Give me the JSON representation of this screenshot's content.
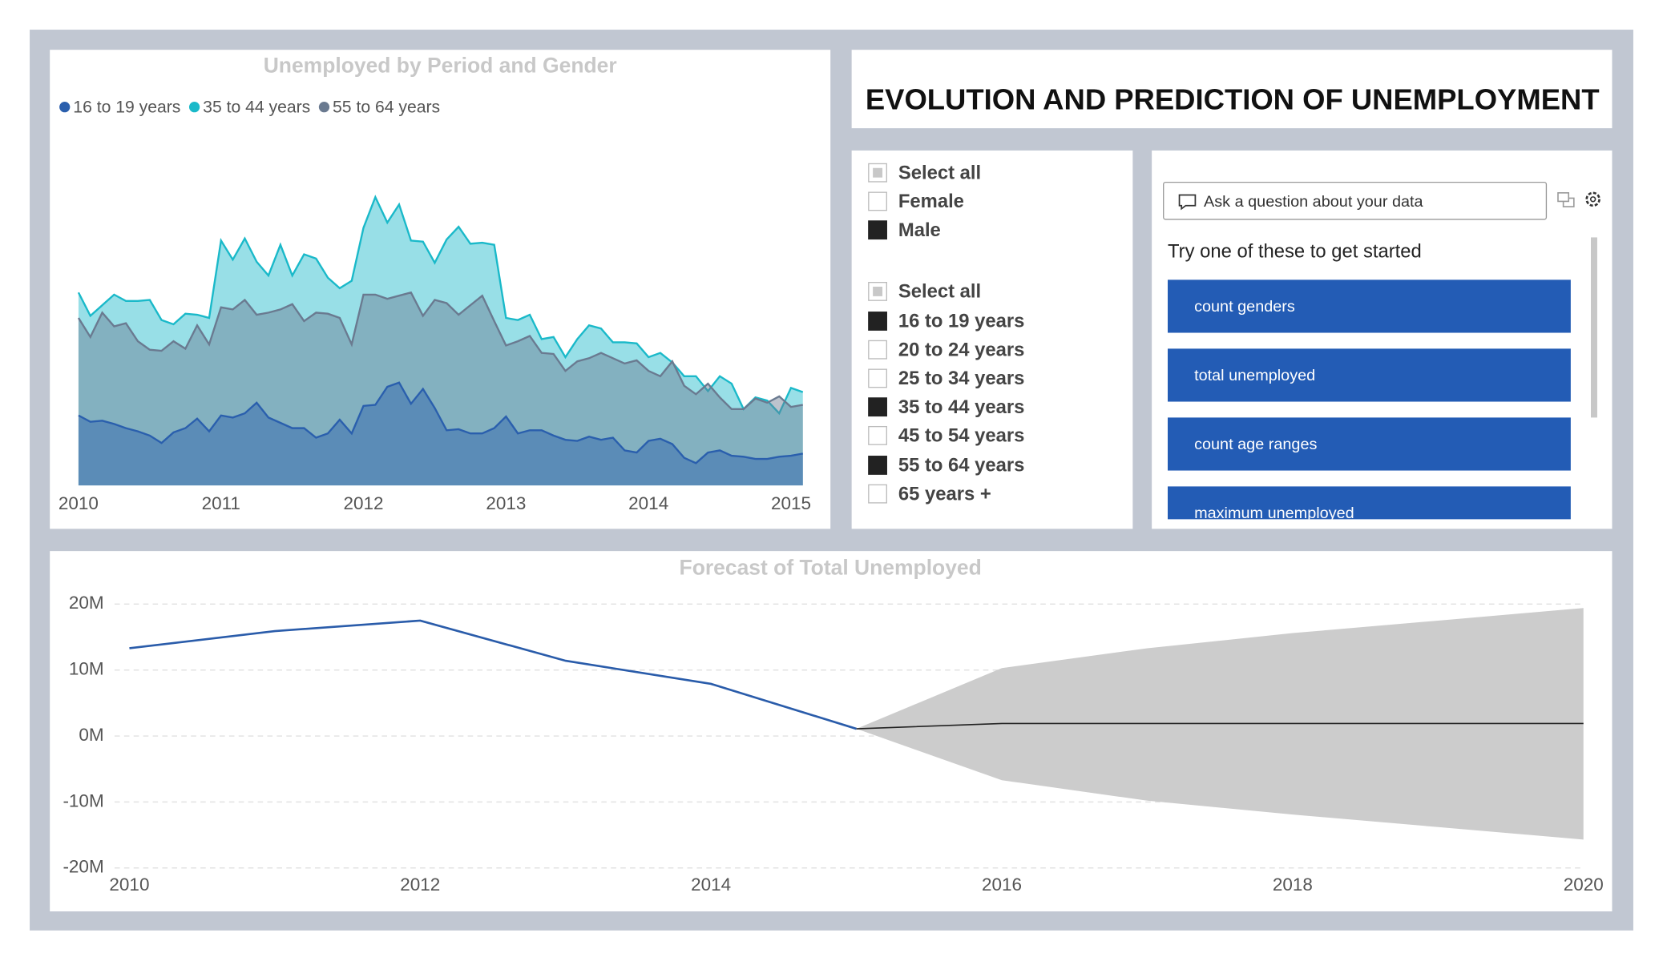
{
  "title": "EVOLUTION AND PREDICTION OF UNEMPLOYMENT",
  "chart_data": [
    {
      "type": "area",
      "title": "Unemployed by Period and Gender",
      "x": [
        2010,
        2010.083,
        2010.167,
        2010.25,
        2010.333,
        2010.417,
        2010.5,
        2010.583,
        2010.667,
        2010.75,
        2010.833,
        2010.917,
        2011,
        2011.083,
        2011.167,
        2011.25,
        2011.333,
        2011.417,
        2011.5,
        2011.583,
        2011.667,
        2011.75,
        2011.833,
        2011.917,
        2012,
        2012.083,
        2012.167,
        2012.25,
        2012.333,
        2012.417,
        2012.5,
        2012.583,
        2012.667,
        2012.75,
        2012.833,
        2012.917,
        2013,
        2013.083,
        2013.167,
        2013.25,
        2013.333,
        2013.417,
        2013.5,
        2013.583,
        2013.667,
        2013.75,
        2013.833,
        2013.917,
        2014,
        2014.083,
        2014.167,
        2014.25,
        2014.333,
        2014.417,
        2014.5,
        2014.583,
        2014.667,
        2014.75,
        2014.833,
        2014.917,
        2015,
        2015.083
      ],
      "xlim": [
        2010,
        2015.083
      ],
      "xticks": [
        2010,
        2011,
        2012,
        2013,
        2014,
        2015
      ],
      "ylim": [
        0,
        330
      ],
      "legend": "top-left",
      "series": [
        {
          "name": "16 to 19 years",
          "color": "#2a5fad",
          "values": [
            66,
            60,
            61,
            58,
            54,
            51,
            47,
            40,
            50,
            54,
            63,
            51,
            66,
            64,
            68,
            78,
            64,
            59,
            54,
            54,
            45,
            49,
            62,
            49,
            75,
            76,
            93,
            97,
            77,
            91,
            73,
            52,
            53,
            49,
            49,
            54,
            65,
            49,
            52,
            52,
            47,
            43,
            42,
            46,
            43,
            45,
            33,
            31,
            42,
            44,
            39,
            26,
            21,
            31,
            33,
            28,
            27,
            25,
            25,
            27,
            28,
            30
          ]
        },
        {
          "name": "35 to 44 years",
          "color": "#1ab9c9",
          "values": [
            182,
            160,
            170,
            180,
            174,
            174,
            175,
            156,
            152,
            162,
            161,
            158,
            231,
            213,
            233,
            211,
            198,
            227,
            198,
            218,
            214,
            196,
            186,
            193,
            243,
            272,
            248,
            265,
            231,
            230,
            210,
            232,
            244,
            228,
            229,
            227,
            158,
            156,
            161,
            138,
            140,
            121,
            138,
            151,
            148,
            135,
            135,
            134,
            121,
            125,
            116,
            103,
            103,
            89,
            103,
            96,
            72,
            83,
            80,
            68,
            92,
            88
          ]
        },
        {
          "name": "55 to 64 years",
          "color": "#6a7a90",
          "values": [
            158,
            140,
            163,
            150,
            153,
            136,
            128,
            127,
            136,
            129,
            151,
            133,
            168,
            166,
            175,
            161,
            163,
            166,
            171,
            155,
            163,
            162,
            158,
            133,
            180,
            180,
            176,
            179,
            182,
            160,
            175,
            172,
            161,
            170,
            179,
            155,
            132,
            136,
            141,
            125,
            124,
            108,
            117,
            120,
            125,
            120,
            115,
            118,
            108,
            103,
            117,
            94,
            86,
            96,
            83,
            72,
            72,
            82,
            78,
            84,
            74,
            76
          ]
        }
      ]
    },
    {
      "type": "forecast",
      "title": "Forecast of Total Unemployed",
      "xlim": [
        2010,
        2020
      ],
      "xticks": [
        2010,
        2012,
        2014,
        2016,
        2018,
        2020
      ],
      "ylim": [
        -20000000,
        20000000
      ],
      "yticks": [
        {
          "value": -20000000,
          "label": "-20M"
        },
        {
          "value": -10000000,
          "label": "-10M"
        },
        {
          "value": 0,
          "label": "0M"
        },
        {
          "value": 10000000,
          "label": "10M"
        },
        {
          "value": 20000000,
          "label": "20M"
        }
      ],
      "grid": true,
      "actual": {
        "color": "#2a5caa",
        "x": [
          2010,
          2011,
          2012,
          2013,
          2014,
          2015
        ],
        "values": [
          13300000,
          15900000,
          17500000,
          11400000,
          7900000,
          1100000
        ]
      },
      "forecast": {
        "color": "#222222",
        "band_color": "#cccccc",
        "x": [
          2015,
          2016,
          2017,
          2018,
          2019,
          2020
        ],
        "values": [
          1100000,
          1900000,
          1900000,
          1900000,
          1900000,
          1900000
        ],
        "upper": [
          1100000,
          10300000,
          13300000,
          15600000,
          17500000,
          19400000
        ],
        "lower": [
          1100000,
          -6700000,
          -9800000,
          -11900000,
          -13800000,
          -15700000
        ]
      }
    }
  ],
  "slicers": [
    {
      "items": [
        {
          "label": "Select all",
          "state": "mixed"
        },
        {
          "label": "Female",
          "state": "unchecked"
        },
        {
          "label": "Male",
          "state": "checked"
        }
      ]
    },
    {
      "items": [
        {
          "label": "Select all",
          "state": "mixed"
        },
        {
          "label": "16 to 19 years",
          "state": "checked"
        },
        {
          "label": "20 to 24 years",
          "state": "unchecked"
        },
        {
          "label": "25 to 34 years",
          "state": "unchecked"
        },
        {
          "label": "35 to 44 years",
          "state": "checked"
        },
        {
          "label": "45 to 54 years",
          "state": "unchecked"
        },
        {
          "label": "55 to 64 years",
          "state": "checked"
        },
        {
          "label": "65 years +",
          "state": "unchecked"
        }
      ]
    }
  ],
  "qa": {
    "placeholder": "Ask a question about your data",
    "prompt": "Try one of these to get started",
    "suggestions": [
      "count genders",
      "total unemployed",
      "count age ranges",
      "maximum unemployed"
    ]
  }
}
